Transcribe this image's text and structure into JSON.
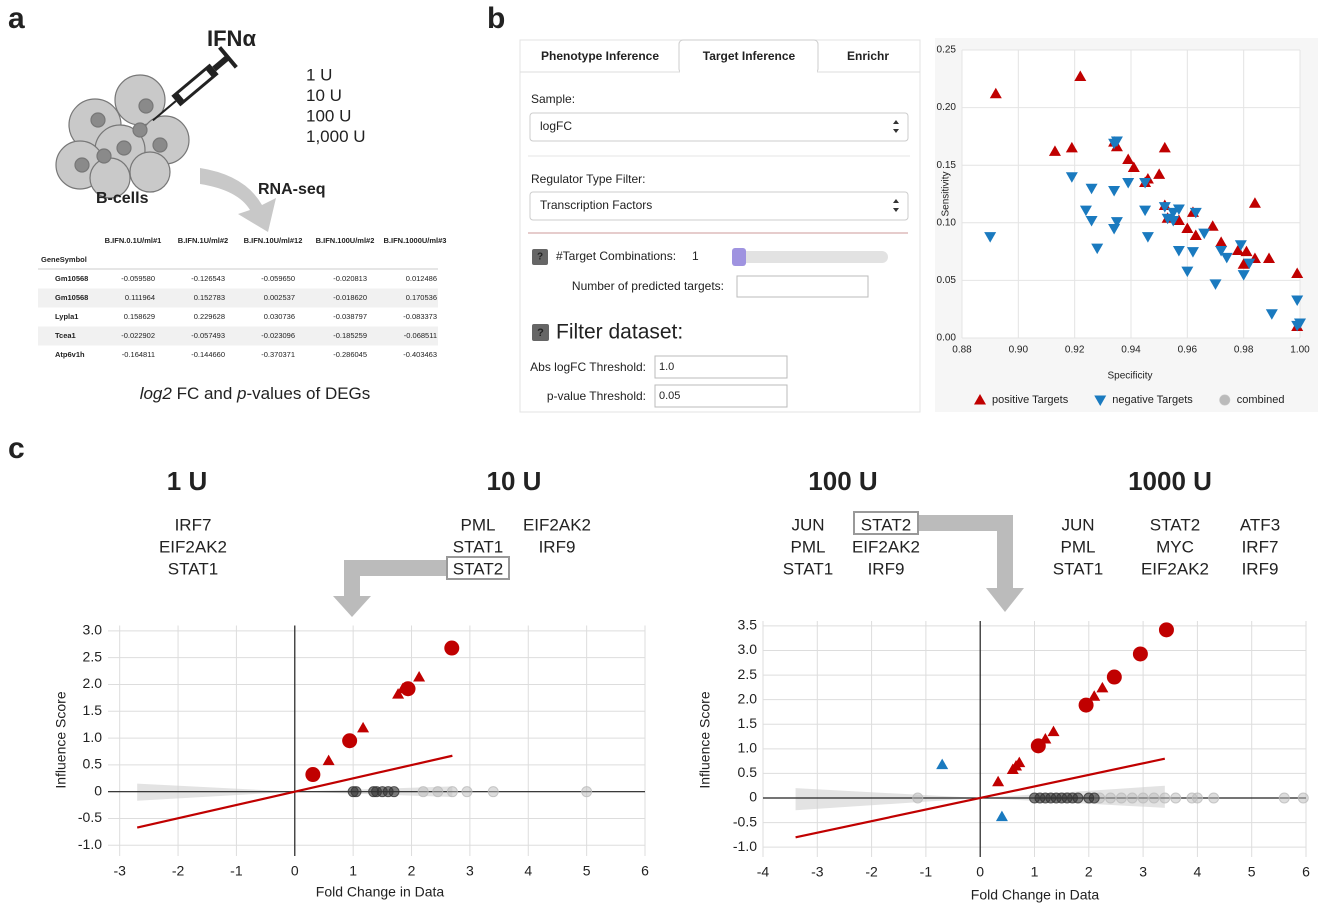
{
  "panel_labels": [
    "a",
    "b",
    "c"
  ],
  "panel_a": {
    "treatment": "IFNα",
    "doses": [
      "1 U",
      "10 U",
      "100 U",
      "1,000 U"
    ],
    "cells": "B-cells",
    "assay": "RNA-seq",
    "table": {
      "columns": [
        "B.IFN.0.1U/ml#1",
        "B.IFN.1U/ml#2",
        "B.IFN.10U/ml#12",
        "B.IFN.100U/ml#2",
        "B.IFN.1000U/ml#3"
      ],
      "index_name": "GeneSymbol",
      "rows": [
        [
          "Gm10568",
          "-0.059580",
          "-0.126543",
          "-0.059650",
          "-0.020813",
          "0.012486"
        ],
        [
          "Gm10568",
          "0.111964",
          "0.152783",
          "0.002537",
          "-0.018620",
          "0.170536"
        ],
        [
          "Lypla1",
          "0.158629",
          "0.229628",
          "0.030736",
          "-0.038797",
          "-0.083373"
        ],
        [
          "Tcea1",
          "-0.022902",
          "-0.057493",
          "-0.023096",
          "-0.185259",
          "-0.068511"
        ],
        [
          "Atp6v1h",
          "-0.164811",
          "-0.144660",
          "-0.370371",
          "-0.286045",
          "-0.403463"
        ]
      ]
    },
    "caption": [
      "log2",
      " FC and ",
      "p",
      "-values of DEGs"
    ]
  },
  "panel_b": {
    "tabs": [
      "Phenotype Inference",
      "Target Inference",
      "Enrichr"
    ],
    "active_tab": 1,
    "help_icon": "?",
    "sample_label": "Sample:",
    "sample_value": "logFC",
    "regulator_label": "Regulator Type Filter:",
    "regulator_value": "Transcription Factors",
    "combinations_label": "#Target Combinations:",
    "combinations_value": "1",
    "predicted_label": "Number of predicted targets:",
    "filter_heading": "Filter dataset:",
    "logfc_label": "Abs logFC Threshold:",
    "logfc_value": "1.0",
    "pvalue_label": "p-value Threshold:",
    "pvalue_value": "0.05"
  },
  "panel_c": {
    "groups": [
      {
        "dose": "1 U",
        "columns": [
          [
            "IRF7",
            "EIF2AK2",
            "STAT1"
          ]
        ]
      },
      {
        "dose": "10 U",
        "columns": [
          [
            "PML",
            "STAT1",
            "STAT2"
          ],
          [
            "EIF2AK2",
            "IRF9"
          ]
        ]
      },
      {
        "dose": "100 U",
        "columns": [
          [
            "JUN",
            "PML",
            "STAT1"
          ],
          [
            "STAT2",
            "EIF2AK2",
            "IRF9"
          ]
        ]
      },
      {
        "dose": "1000 U",
        "columns": [
          [
            "JUN",
            "PML",
            "STAT1"
          ],
          [
            "STAT2",
            "MYC",
            "EIF2AK2"
          ],
          [
            "ATF3",
            "IRF7",
            "IRF9"
          ]
        ]
      }
    ]
  },
  "chart_data": [
    {
      "type": "scatter",
      "x_label": "Specificity",
      "y_label": "Sensitivity",
      "xlim": [
        0.88,
        1
      ],
      "ylim": [
        0,
        0.25
      ],
      "xticks": [
        0.88,
        {
          "value": 0.9,
          "label": "0.90"
        },
        0.92,
        0.94,
        0.96,
        0.98,
        {
          "value": 1,
          "label": "1.00"
        }
      ],
      "yticks": [
        {
          "value": 0,
          "label": "0.00"
        },
        0.05,
        {
          "value": 0.1,
          "label": "0.10"
        },
        0.15,
        {
          "value": 0.2,
          "label": "0.20"
        },
        0.25
      ],
      "grid": true,
      "legend_position": "bottom",
      "series": [
        {
          "name": "positive Targets",
          "color": "#c00000",
          "marker": "triangle-up",
          "x": [
            0.922,
            0.892,
            0.913,
            0.919,
            0.934,
            0.935,
            0.939,
            0.941,
            0.945,
            0.946,
            0.95,
            0.952,
            0.952,
            0.953,
            0.957,
            0.96,
            0.962,
            0.963,
            0.969,
            0.972,
            0.978,
            0.981,
            0.984,
            0.989,
            0.98,
            0.984,
            0.999,
            0.999
          ],
          "values": [
            0.227,
            0.212,
            0.162,
            0.165,
            0.17,
            0.166,
            0.155,
            0.148,
            0.135,
            0.138,
            0.142,
            0.165,
            0.115,
            0.104,
            0.102,
            0.095,
            0.109,
            0.089,
            0.097,
            0.083,
            0.076,
            0.075,
            0.069,
            0.069,
            0.064,
            0.117,
            0.056,
            0.01
          ]
        },
        {
          "name": "negative Targets",
          "color": "#1a7abf",
          "marker": "triangle-down",
          "x": [
            0.89,
            0.919,
            0.926,
            0.934,
            0.935,
            0.934,
            0.939,
            0.945,
            0.924,
            0.926,
            0.928,
            0.935,
            0.934,
            0.945,
            0.946,
            0.952,
            0.953,
            0.955,
            0.955,
            0.957,
            0.957,
            0.96,
            0.963,
            0.966,
            0.97,
            0.972,
            0.974,
            0.979,
            0.98,
            0.982,
            0.99,
            0.999,
            0.999,
            1,
            0.962
          ],
          "values": [
            0.088,
            0.14,
            0.13,
            0.128,
            0.171,
            0.169,
            0.135,
            0.135,
            0.111,
            0.102,
            0.078,
            0.101,
            0.095,
            0.111,
            0.088,
            0.114,
            0.104,
            0.109,
            0.102,
            0.112,
            0.076,
            0.058,
            0.109,
            0.091,
            0.047,
            0.076,
            0.07,
            0.081,
            0.055,
            0.065,
            0.021,
            0.033,
            0.011,
            0.013,
            0.075
          ]
        },
        {
          "name": "combined",
          "color": "#bbbbbb",
          "marker": "circle",
          "x": [],
          "values": []
        }
      ]
    },
    {
      "type": "scatter",
      "x_label": "Fold Change in Data",
      "y_label": "Influence Score",
      "xlim": [
        -3.2,
        6
      ],
      "ylim": [
        -1.2,
        3.1
      ],
      "xticks": [
        -3,
        -2,
        -1,
        0,
        1,
        2,
        3,
        4,
        5,
        6
      ],
      "yticks": [
        {
          "value": -1,
          "label": "-1.0"
        },
        -0.5,
        0,
        0.5,
        {
          "value": 1,
          "label": "1.0"
        },
        1.5,
        {
          "value": 2,
          "label": "2.0"
        },
        2.5,
        {
          "value": 3,
          "label": "3.0"
        }
      ],
      "grid": true,
      "zero_lines": true,
      "confidence_band": {
        "color": "#d0d0d0",
        "x": [
          -2.7,
          0,
          2.7
        ],
        "lower": [
          -0.17,
          0,
          -0.1
        ],
        "upper": [
          0.15,
          0,
          0.1
        ]
      },
      "trend_line": {
        "color": "#c00000",
        "x": [
          -2.7,
          2.7
        ],
        "values": [
          -0.67,
          0.67
        ]
      },
      "series": [
        {
          "color": "#bbbbbb",
          "marker": "circle",
          "opacity": 0.5,
          "x": [
            2.2,
            2.45,
            2.7,
            2.95,
            3.4,
            5
          ],
          "values": [
            0,
            0,
            0,
            0,
            0,
            0
          ]
        },
        {
          "color": "#333333",
          "marker": "circle",
          "opacity": 0.6,
          "x": [
            1,
            1.05,
            1.35,
            1.4,
            1.5,
            1.6,
            1.7
          ],
          "values": [
            0,
            0,
            0,
            0,
            0,
            0,
            0
          ]
        },
        {
          "color": "#c00000",
          "marker": "triangle-up",
          "opacity": 1,
          "x": [
            0.58,
            1.17,
            1.77,
            1.85,
            2.13
          ],
          "values": [
            0.58,
            1.19,
            1.82,
            1.92,
            2.14
          ]
        },
        {
          "color": "#c00000",
          "marker": "large-circle",
          "opacity": 1,
          "x": [
            0.31,
            0.94,
            1.94,
            2.69
          ],
          "values": [
            0.32,
            0.95,
            1.92,
            2.68
          ]
        }
      ]
    },
    {
      "type": "scatter",
      "x_label": "Fold Change in Data",
      "y_label": "Influence Score",
      "xlim": [
        -4,
        6
      ],
      "ylim": [
        -1.2,
        3.6
      ],
      "xticks": [
        -4,
        -3,
        -2,
        -1,
        0,
        1,
        2,
        3,
        4,
        5,
        6
      ],
      "yticks": [
        {
          "value": -1,
          "label": "-1.0"
        },
        -0.5,
        0,
        0.5,
        {
          "value": 1,
          "label": "1.0"
        },
        1.5,
        {
          "value": 2,
          "label": "2.0"
        },
        2.5,
        {
          "value": 3,
          "label": "3.0"
        },
        3.5
      ],
      "grid": true,
      "zero_lines": true,
      "confidence_band": {
        "color": "#d0d0d0",
        "x": [
          -3.4,
          0,
          3.4
        ],
        "lower": [
          -0.25,
          0,
          -0.2
        ],
        "upper": [
          0.2,
          0,
          0.25
        ]
      },
      "trend_line": {
        "color": "#c00000",
        "x": [
          -3.4,
          3.4
        ],
        "values": [
          -0.8,
          0.8
        ]
      },
      "series": [
        {
          "color": "#bbbbbb",
          "marker": "circle",
          "opacity": 0.5,
          "x": [
            -1.15,
            2.2,
            2.4,
            2.6,
            2.8,
            3,
            3.2,
            3.4,
            3.6,
            3.9,
            4,
            4.3,
            5.6,
            5.95
          ],
          "values": [
            0,
            0,
            0,
            0,
            0,
            0,
            0,
            0,
            0,
            0,
            0,
            0,
            0,
            0
          ]
        },
        {
          "color": "#333333",
          "marker": "circle",
          "opacity": 0.6,
          "x": [
            1,
            1.1,
            1.2,
            1.3,
            1.4,
            1.5,
            1.6,
            1.7,
            1.8,
            2,
            2.1
          ],
          "values": [
            0,
            0,
            0,
            0,
            0,
            0,
            0,
            0,
            0,
            0,
            0
          ]
        },
        {
          "color": "#c00000",
          "marker": "triangle-up",
          "opacity": 1,
          "x": [
            0.33,
            0.6,
            0.66,
            0.72,
            1.2,
            1.35,
            2.1,
            2.25
          ],
          "values": [
            0.33,
            0.58,
            0.65,
            0.72,
            1.2,
            1.35,
            2.07,
            2.24
          ]
        },
        {
          "color": "#1a7abf",
          "marker": "triangle-up",
          "opacity": 1,
          "x": [
            -0.7,
            0.4
          ],
          "values": [
            0.68,
            -0.38
          ]
        },
        {
          "color": "#c00000",
          "marker": "large-circle",
          "opacity": 1,
          "x": [
            1.07,
            1.95,
            2.47,
            2.95,
            3.43
          ],
          "values": [
            1.06,
            1.89,
            2.46,
            2.93,
            3.42
          ]
        }
      ]
    }
  ]
}
